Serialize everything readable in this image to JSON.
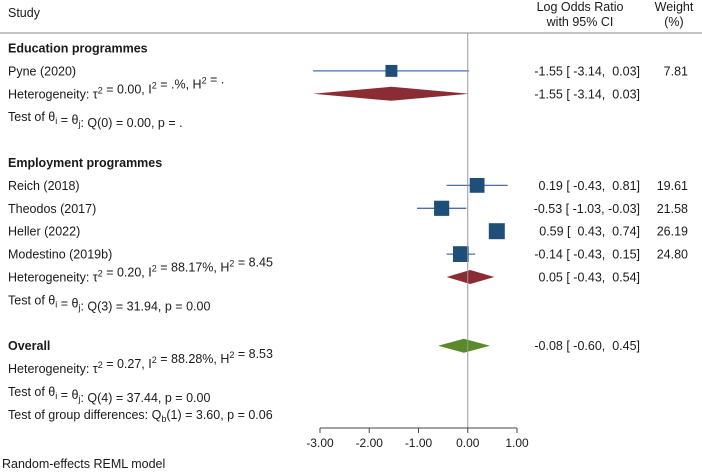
{
  "chart_data": {
    "type": "forest",
    "headers": {
      "study": "Study",
      "effect_line1": "Log Odds Ratio",
      "effect_line2": "with 95% CI",
      "weight_line1": "Weight",
      "weight_line2": "(%)"
    },
    "rows": [
      {
        "kind": "group",
        "label": "Education programmes"
      },
      {
        "kind": "study",
        "label": "Pyne (2020)",
        "est": -1.55,
        "lo": -3.14,
        "hi": 0.03,
        "ci_text": "-1.55 [ -3.14,  0.03]",
        "weight": 7.81,
        "weight_text": "7.81"
      },
      {
        "kind": "het",
        "label_pre": "Heterogeneity: τ",
        "label_rest": " = 0.00, I",
        "label_rest2": " = .%, H",
        "label_rest3": " = .",
        "est": -1.55,
        "lo": -3.14,
        "hi": 0.03,
        "ci_text": "-1.55 [ -3.14,  0.03]",
        "diamond_color": "#8b2c35"
      },
      {
        "kind": "test",
        "label": "Test of θi = θj: Q(0) = 0.00, p = ."
      },
      {
        "kind": "blank"
      },
      {
        "kind": "group",
        "label": "Employment programmes"
      },
      {
        "kind": "study",
        "label": "Reich (2018)",
        "est": 0.19,
        "lo": -0.43,
        "hi": 0.81,
        "ci_text": "0.19 [ -0.43,  0.81]",
        "weight": 19.61,
        "weight_text": "19.61"
      },
      {
        "kind": "study",
        "label": "Theodos (2017)",
        "est": -0.53,
        "lo": -1.03,
        "hi": -0.03,
        "ci_text": "-0.53 [ -1.03, -0.03]",
        "weight": 21.58,
        "weight_text": "21.58"
      },
      {
        "kind": "study",
        "label": "Heller (2022)",
        "est": 0.59,
        "lo": 0.43,
        "hi": 0.74,
        "ci_text": "0.59 [  0.43,  0.74]",
        "weight": 26.19,
        "weight_text": "26.19"
      },
      {
        "kind": "study",
        "label": "Modestino (2019b)",
        "est": -0.14,
        "lo": -0.43,
        "hi": 0.15,
        "ci_text": "-0.14 [ -0.43,  0.15]",
        "weight": 24.8,
        "weight_text": "24.80"
      },
      {
        "kind": "het",
        "label_pre": "Heterogeneity: τ",
        "label_rest": " = 0.20, I",
        "label_rest2": " = 88.17%, H",
        "label_rest3": " = 8.45",
        "est": 0.05,
        "lo": -0.43,
        "hi": 0.54,
        "ci_text": "0.05 [ -0.43,  0.54]",
        "diamond_color": "#8b2c35"
      },
      {
        "kind": "test",
        "label": "Test of θi = θj: Q(3) = 31.94, p = 0.00"
      },
      {
        "kind": "blank"
      },
      {
        "kind": "overall",
        "label": "Overall",
        "est": -0.08,
        "lo": -0.6,
        "hi": 0.45,
        "ci_text": "-0.08 [ -0.60,  0.45]",
        "diamond_color": "#5a8a2c"
      },
      {
        "kind": "het",
        "label_pre": "Heterogeneity: τ",
        "label_rest": " = 0.27, I",
        "label_rest2": " = 88.28%, H",
        "label_rest3": " = 8.53",
        "no_diamond": true
      },
      {
        "kind": "test",
        "label": "Test of θi = θj: Q(4) = 37.44, p = 0.00"
      },
      {
        "kind": "groupdiff",
        "label_pre": "Test of group differences: Q",
        "label_sub": "b",
        "label_rest": "(1) = 3.60, p = 0.06"
      }
    ],
    "x_ticks": [
      -3.0,
      -2.0,
      -1.0,
      0.0,
      1.0
    ],
    "x_tick_labels": [
      "-3.00",
      "-2.00",
      "-1.00",
      "0.00",
      "1.00"
    ],
    "xlim": [
      -3.3,
      1.1
    ],
    "reference_line": 0,
    "note": "Random-effects REML model",
    "marker_color": "#1f4e79",
    "ci_line_color": "#4a6fa5"
  }
}
